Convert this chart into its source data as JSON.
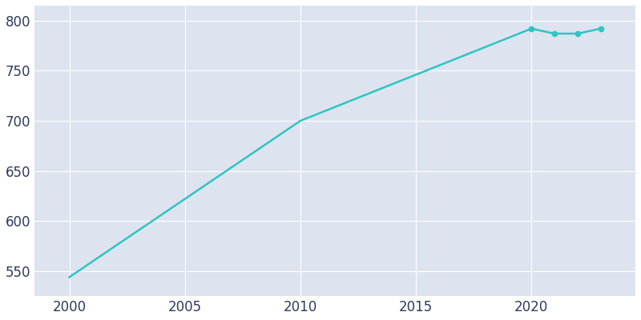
{
  "x_values": [
    2000,
    2010,
    2020,
    2021,
    2022,
    2023
  ],
  "population": [
    544,
    700,
    792,
    787,
    787,
    792
  ],
  "marker_indices": [
    2,
    3,
    4,
    5
  ],
  "line_color": "#2EC4C4",
  "marker_color": "#2EC4C4",
  "plot_bg_color": "#DDE4EF",
  "fig_bg_color": "#FFFFFF",
  "grid_color": "#FFFFFF",
  "text_color": "#2D3A5E",
  "xlim": [
    1998.5,
    2024.5
  ],
  "ylim": [
    525,
    815
  ],
  "xticks": [
    2000,
    2005,
    2010,
    2015,
    2020
  ],
  "yticks": [
    550,
    600,
    650,
    700,
    750,
    800
  ],
  "figsize": [
    8.0,
    4.0
  ],
  "dpi": 100,
  "tick_fontsize": 12,
  "linewidth": 1.8,
  "markersize": 4.5
}
